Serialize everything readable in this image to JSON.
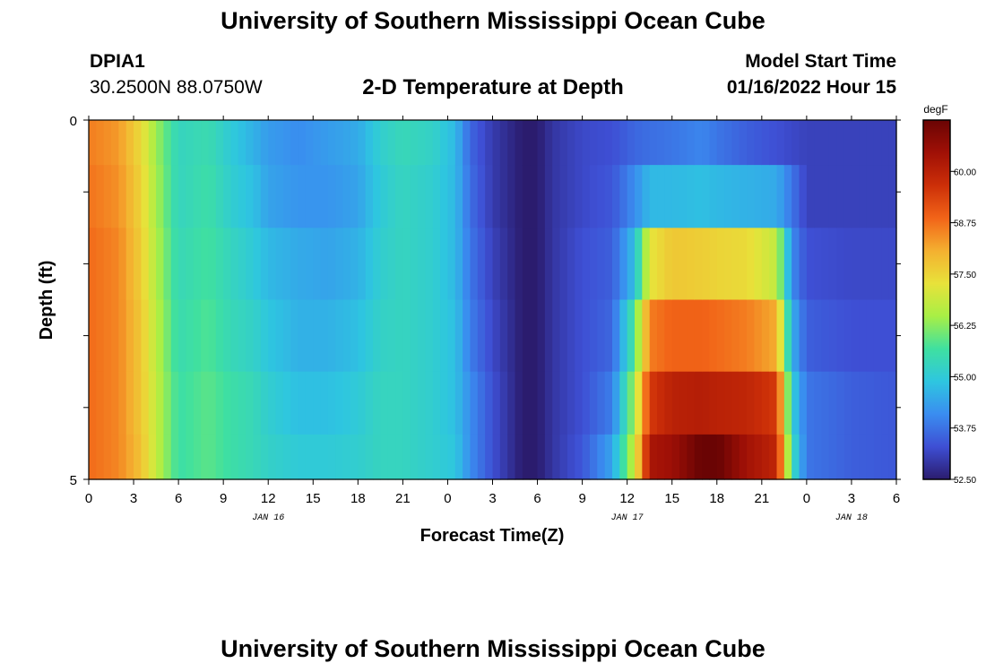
{
  "header": {
    "title": "University of Southern Mississippi Ocean Cube",
    "station_id": "DPIA1",
    "station_coords": "30.2500N  88.0750W",
    "subtitle": "2-D Temperature at Depth",
    "model_start_label": "Model Start Time",
    "model_start_value": "01/16/2022 Hour 15"
  },
  "footer": {
    "title": "University of Southern Mississippi Ocean Cube"
  },
  "colors": {
    "scale": [
      "#2b1c6e",
      "#3e4fd4",
      "#3a8df0",
      "#2ec6e0",
      "#3fe0a0",
      "#a8ef45",
      "#e8e23a",
      "#f4b030",
      "#f26418",
      "#cc2f08",
      "#a01006",
      "#6a0404"
    ]
  },
  "chart_data": {
    "type": "heatmap",
    "xlabel": "Forecast Time(Z)",
    "ylabel": "Depth (ft)",
    "x_tick_labels": [
      "0",
      "3",
      "6",
      "9",
      "12",
      "15",
      "18",
      "21",
      "0",
      "3",
      "6",
      "9",
      "12",
      "15",
      "18",
      "21",
      "0",
      "3",
      "6"
    ],
    "date_labels": [
      {
        "label": "JAN 16",
        "hour": 12
      },
      {
        "label": "JAN 17",
        "hour": 36
      },
      {
        "label": "JAN 18",
        "hour": 51
      }
    ],
    "x_range_hours": [
      0,
      54
    ],
    "y_tick_labels": [
      "0",
      "5"
    ],
    "ylim": [
      0,
      5
    ],
    "colorbar": {
      "unit": "degF",
      "min": 52.5,
      "max": 61.25,
      "tick_labels": [
        "60.00",
        "58.75",
        "57.50",
        "56.25",
        "55.00",
        "53.75",
        "52.50"
      ]
    },
    "depth_layers_ft": [
      0.25,
      1.0,
      2.0,
      3.0,
      4.0,
      4.75
    ],
    "temperature_profiles_degF": [
      {
        "hour": 0,
        "values": [
          58.6,
          58.7,
          58.8,
          58.8,
          58.8,
          58.8
        ]
      },
      {
        "hour": 2,
        "values": [
          58.3,
          58.4,
          58.5,
          58.5,
          58.5,
          58.5
        ]
      },
      {
        "hour": 3.5,
        "values": [
          57.4,
          57.5,
          57.6,
          57.7,
          57.7,
          57.8
        ]
      },
      {
        "hour": 4.5,
        "values": [
          56.4,
          56.5,
          56.6,
          56.7,
          56.8,
          56.8
        ]
      },
      {
        "hour": 6,
        "values": [
          55.3,
          55.3,
          55.4,
          55.5,
          55.6,
          55.6
        ]
      },
      {
        "hour": 8,
        "values": [
          55.5,
          55.6,
          55.7,
          55.8,
          55.9,
          55.9
        ]
      },
      {
        "hour": 9.5,
        "values": [
          55.0,
          55.1,
          55.3,
          55.4,
          55.6,
          55.6
        ]
      },
      {
        "hour": 11,
        "values": [
          54.6,
          54.8,
          55.0,
          55.2,
          55.4,
          55.4
        ]
      },
      {
        "hour": 12,
        "values": [
          54.3,
          54.4,
          54.7,
          54.9,
          55.1,
          55.2
        ]
      },
      {
        "hour": 14,
        "values": [
          54.1,
          54.2,
          54.5,
          54.6,
          54.8,
          55.0
        ]
      },
      {
        "hour": 16,
        "values": [
          54.3,
          54.2,
          54.4,
          54.6,
          54.8,
          55.0
        ]
      },
      {
        "hour": 18,
        "values": [
          54.5,
          54.4,
          54.6,
          54.8,
          55.0,
          55.1
        ]
      },
      {
        "hour": 19.5,
        "values": [
          55.1,
          55.0,
          55.1,
          55.2,
          55.3,
          55.3
        ]
      },
      {
        "hour": 21,
        "values": [
          55.4,
          55.3,
          55.3,
          55.3,
          55.3,
          55.3
        ]
      },
      {
        "hour": 23,
        "values": [
          55.2,
          55.1,
          55.1,
          55.1,
          55.1,
          55.1
        ]
      },
      {
        "hour": 24.5,
        "values": [
          54.7,
          54.7,
          54.7,
          54.8,
          54.8,
          54.9
        ]
      },
      {
        "hour": 25.5,
        "values": [
          53.6,
          53.7,
          53.8,
          53.9,
          54.1,
          54.1
        ]
      },
      {
        "hour": 27,
        "values": [
          53.0,
          53.0,
          53.1,
          53.2,
          53.3,
          53.3
        ]
      },
      {
        "hour": 29,
        "values": [
          52.5,
          52.5,
          52.5,
          52.5,
          52.5,
          52.5
        ]
      },
      {
        "hour": 30,
        "values": [
          52.5,
          52.5,
          52.5,
          52.5,
          52.5,
          52.5
        ]
      },
      {
        "hour": 31,
        "values": [
          52.9,
          52.9,
          52.9,
          52.9,
          52.9,
          52.9
        ]
      },
      {
        "hour": 33,
        "values": [
          53.2,
          53.2,
          53.3,
          53.3,
          53.3,
          53.4
        ]
      },
      {
        "hour": 35,
        "values": [
          53.3,
          53.4,
          53.5,
          53.6,
          53.9,
          54.4
        ]
      },
      {
        "hour": 36.5,
        "values": [
          53.6,
          54.1,
          54.8,
          55.8,
          56.5,
          56.9
        ]
      },
      {
        "hour": 37.5,
        "values": [
          53.7,
          54.7,
          57.2,
          58.6,
          59.5,
          60.3
        ]
      },
      {
        "hour": 39,
        "values": [
          53.8,
          54.7,
          57.7,
          58.9,
          60.0,
          60.5
        ]
      },
      {
        "hour": 41,
        "values": [
          54.0,
          54.8,
          57.6,
          58.9,
          60.1,
          61.3
        ]
      },
      {
        "hour": 42,
        "values": [
          53.8,
          54.7,
          57.5,
          58.8,
          60.0,
          61.3
        ]
      },
      {
        "hour": 44,
        "values": [
          53.5,
          54.6,
          57.4,
          58.6,
          59.9,
          60.4
        ]
      },
      {
        "hour": 46,
        "values": [
          53.3,
          54.5,
          56.8,
          58.1,
          59.5,
          59.9
        ]
      },
      {
        "hour": 47,
        "values": [
          53.2,
          53.8,
          54.1,
          54.6,
          55.1,
          55.5
        ]
      },
      {
        "hour": 48,
        "values": [
          53.1,
          53.1,
          53.3,
          53.5,
          53.8,
          53.8
        ]
      },
      {
        "hour": 51,
        "values": [
          53.1,
          53.1,
          53.2,
          53.3,
          53.5,
          53.5
        ]
      },
      {
        "hour": 54,
        "values": [
          53.1,
          53.1,
          53.2,
          53.3,
          53.4,
          53.4
        ]
      }
    ]
  }
}
